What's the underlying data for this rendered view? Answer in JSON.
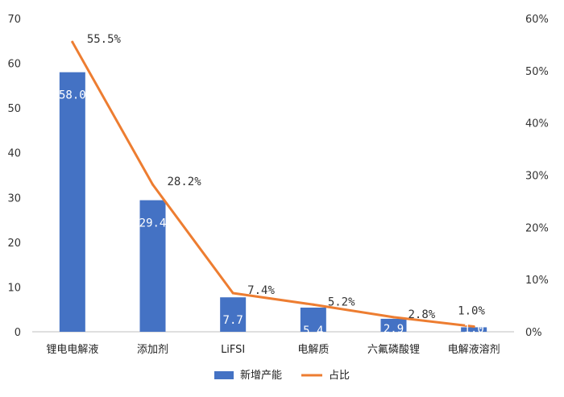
{
  "chart_data": {
    "type": "bar",
    "categories": [
      "锂电电解液",
      "添加剂",
      "LiFSI",
      "电解质",
      "六氟磷酸锂",
      "电解液溶剂"
    ],
    "series": [
      {
        "name": "新增产能",
        "type": "bar",
        "axis": "left",
        "values": [
          58.0,
          29.4,
          7.7,
          5.4,
          2.9,
          1.0
        ],
        "labels": [
          "58.0",
          "29.4",
          "7.7",
          "5.4",
          "2.9",
          "1.0"
        ],
        "color": "#4472C4"
      },
      {
        "name": "占比",
        "type": "line",
        "axis": "right",
        "values": [
          55.5,
          28.2,
          7.4,
          5.2,
          2.8,
          1.0
        ],
        "labels": [
          "55.5%",
          "28.2%",
          "7.4%",
          "5.2%",
          "2.8%",
          "1.0%"
        ],
        "color": "#ED7D31"
      }
    ],
    "y_left": {
      "min": 0,
      "max": 70,
      "step": 10,
      "ticks": [
        "0",
        "10",
        "20",
        "30",
        "40",
        "50",
        "60",
        "70"
      ]
    },
    "y_right": {
      "min": 0,
      "max": 60,
      "step": 10,
      "ticks": [
        "0%",
        "10%",
        "20%",
        "30%",
        "40%",
        "50%",
        "60%"
      ]
    },
    "grid": false,
    "legend": "bottom"
  }
}
